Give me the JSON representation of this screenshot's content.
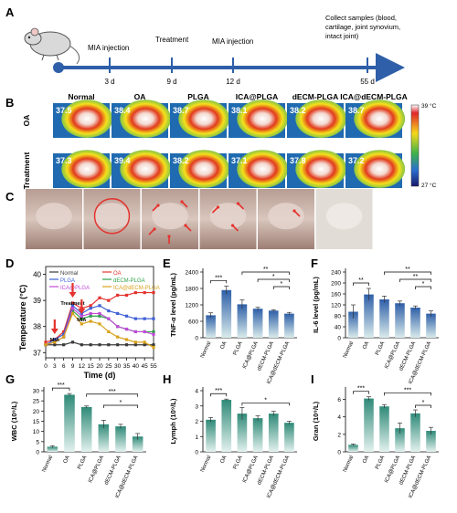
{
  "panels": {
    "A": {
      "label": "A",
      "timeline": [
        {
          "day": "3 d",
          "event": "MIA injection"
        },
        {
          "day": "9 d",
          "event": "Treatment"
        },
        {
          "day": "12 d",
          "event": "MIA injection"
        },
        {
          "day": "55 d",
          "event": "Collect samples (blood, cartilage, joint synovium, intact joint)"
        }
      ]
    },
    "B": {
      "label": "B",
      "columns": [
        "Normal",
        "OA",
        "PLGA",
        "ICA@PLGA",
        "dECM-PLGA",
        "ICA@dECM-PLGA"
      ],
      "rows": [
        "OA",
        "Treatment"
      ],
      "temps": [
        [
          "37.5",
          "38.4",
          "38.7",
          "38.1",
          "38.2",
          "38.7"
        ],
        [
          "37.3",
          "39.4",
          "38.2",
          "37.1",
          "37.8",
          "37.2"
        ]
      ],
      "scale_max": "39 °C",
      "scale_min": "27 °C"
    },
    "C": {
      "label": "C"
    },
    "D": {
      "label": "D",
      "legend": [
        "Normal",
        "OA",
        "PLGA",
        "dECM-PLGA",
        "ICA@PLGA",
        "ICA@dECM-PLGA"
      ],
      "arrow_labels": [
        "MIA",
        "Treatment",
        "MIA"
      ]
    },
    "E": {
      "label": "E"
    },
    "F": {
      "label": "F"
    },
    "G": {
      "label": "G"
    },
    "H": {
      "label": "H"
    },
    "I": {
      "label": "I"
    }
  },
  "colors": {
    "Normal": "#3a3a3a",
    "OA": "#e5322d",
    "PLGA": "#3e5fd6",
    "dECM-PLGA": "#2ea04a",
    "ICA@PLGA": "#c04ad8",
    "ICA@dECM-PLGA": "#d8a21a",
    "timeline": "#2e5fa8",
    "bar_top": "#2e5fa8",
    "bar_bottom": "#d9ebeb",
    "bar_top_green": "#2f8a78"
  },
  "chart_data": [
    {
      "panel": "D",
      "type": "line",
      "xlabel": "Time (d)",
      "ylabel": "Temperature (°C)",
      "xticks": [
        0,
        3,
        6,
        9,
        12,
        15,
        20,
        25,
        30,
        35,
        40,
        45,
        55
      ],
      "yticks": [
        37,
        38,
        39,
        40
      ],
      "ylim": [
        36.8,
        40.3
      ],
      "x": [
        0,
        3,
        6,
        9,
        12,
        15,
        20,
        25,
        30,
        35,
        40,
        45,
        55
      ],
      "series": [
        {
          "name": "Normal",
          "values": [
            37.3,
            37.3,
            37.3,
            37.4,
            37.3,
            37.3,
            37.3,
            37.3,
            37.3,
            37.3,
            37.3,
            37.3,
            37.3
          ]
        },
        {
          "name": "OA",
          "values": [
            37.4,
            37.5,
            37.8,
            38.9,
            38.7,
            38.8,
            39.1,
            39.0,
            39.2,
            39.2,
            39.3,
            39.3,
            39.3
          ]
        },
        {
          "name": "PLGA",
          "values": [
            37.3,
            37.5,
            37.7,
            38.8,
            38.5,
            38.7,
            38.8,
            38.6,
            38.5,
            38.4,
            38.3,
            38.3,
            38.3
          ]
        },
        {
          "name": "dECM-PLGA",
          "values": [
            37.3,
            37.4,
            37.6,
            38.6,
            38.3,
            38.4,
            38.4,
            38.3,
            38.0,
            37.9,
            37.8,
            37.8,
            37.8
          ]
        },
        {
          "name": "ICA@PLGA",
          "values": [
            37.3,
            37.4,
            37.6,
            38.7,
            38.4,
            38.5,
            38.5,
            38.3,
            38.0,
            37.9,
            37.8,
            37.8,
            37.7
          ]
        },
        {
          "name": "ICA@dECM-PLGA",
          "values": [
            37.3,
            37.4,
            37.6,
            38.5,
            38.1,
            38.2,
            38.1,
            37.8,
            37.6,
            37.5,
            37.4,
            37.4,
            37.2
          ]
        }
      ]
    },
    {
      "panel": "E",
      "type": "bar",
      "ylabel": "TNF-α level (pg/mL)",
      "categories": [
        "Normal",
        "OA",
        "PLGA",
        "ICA@PLGA",
        "dECM-PLGA",
        "ICA@dECM-PLGA"
      ],
      "values": [
        820,
        1740,
        1220,
        1060,
        990,
        880
      ],
      "errors": [
        90,
        150,
        160,
        50,
        30,
        45
      ],
      "ylim": [
        0,
        2400
      ],
      "yticks": [
        0,
        600,
        1200,
        1800,
        2400
      ],
      "sig": [
        {
          "a": 0,
          "b": 1,
          "label": "***",
          "level": 0
        },
        {
          "a": 2,
          "b": 5,
          "label": "**",
          "level": 2
        },
        {
          "a": 3,
          "b": 5,
          "label": "*",
          "level": 1
        },
        {
          "a": 4,
          "b": 5,
          "label": "*",
          "level": 0
        }
      ]
    },
    {
      "panel": "F",
      "type": "bar",
      "ylabel": "IL-6 level (pg/mL)",
      "categories": [
        "Normal",
        "OA",
        "PLGA",
        "ICA@PLGA",
        "dECM-PLGA",
        "ICA@dECM-PLGA"
      ],
      "values": [
        95,
        158,
        140,
        126,
        110,
        88
      ],
      "errors": [
        25,
        22,
        12,
        8,
        6,
        10
      ],
      "ylim": [
        0,
        240
      ],
      "yticks": [
        0,
        40,
        80,
        120,
        160,
        200,
        240
      ],
      "sig": [
        {
          "a": 0,
          "b": 1,
          "label": "**",
          "level": 0
        },
        {
          "a": 2,
          "b": 5,
          "label": "**",
          "level": 2
        },
        {
          "a": 3,
          "b": 5,
          "label": "**",
          "level": 1
        },
        {
          "a": 4,
          "b": 5,
          "label": "*",
          "level": 0
        }
      ]
    },
    {
      "panel": "G",
      "type": "bar",
      "ylabel": "WBC (10⁹/L)",
      "categories": [
        "Normal",
        "OA",
        "PLGA",
        "ICA@PLGA",
        "dECM-PLGA",
        "ICA@dECM-PLGA"
      ],
      "values": [
        2.5,
        28.0,
        22.0,
        13.5,
        12.5,
        7.5
      ],
      "errors": [
        0.5,
        0.6,
        0.5,
        2.0,
        1.0,
        1.5
      ],
      "ylim": [
        0,
        30
      ],
      "yticks": [
        0,
        5,
        10,
        15,
        20,
        25,
        30
      ],
      "sig": [
        {
          "a": 0,
          "b": 1,
          "label": "***",
          "level": 0
        },
        {
          "a": 2,
          "b": 5,
          "label": "***",
          "level": 1
        },
        {
          "a": 3,
          "b": 5,
          "label": "*",
          "level": 0
        }
      ]
    },
    {
      "panel": "H",
      "type": "bar",
      "ylabel": "Lymph (10⁹/L)",
      "categories": [
        "Normal",
        "OA",
        "PLGA",
        "ICA@PLGA",
        "dECM-PLGA",
        "ICA@dECM-PLGA"
      ],
      "values": [
        2.1,
        3.4,
        2.5,
        2.2,
        2.5,
        1.9
      ],
      "errors": [
        0.15,
        0.05,
        0.4,
        0.15,
        0.15,
        0.1
      ],
      "ylim": [
        0,
        4
      ],
      "yticks": [
        0,
        1,
        2,
        3,
        4
      ],
      "sig": [
        {
          "a": 0,
          "b": 1,
          "label": "***",
          "level": 0
        },
        {
          "a": 2,
          "b": 5,
          "label": "*",
          "level": 0
        }
      ]
    },
    {
      "panel": "I",
      "type": "bar",
      "ylabel": "Gran (10⁹/L)",
      "categories": [
        "Normal",
        "OA",
        "PLGA",
        "ICA@PLGA",
        "dECM-PLGA",
        "ICA@dECM-PLGA"
      ],
      "values": [
        0.8,
        6.1,
        5.2,
        2.7,
        4.4,
        2.4
      ],
      "errors": [
        0.1,
        0.2,
        0.2,
        0.6,
        0.4,
        0.4
      ],
      "ylim": [
        0,
        7
      ],
      "yticks": [
        0,
        2,
        4,
        6
      ],
      "sig": [
        {
          "a": 0,
          "b": 1,
          "label": "***",
          "level": 0
        },
        {
          "a": 2,
          "b": 5,
          "label": "***",
          "level": 1
        },
        {
          "a": 4,
          "b": 5,
          "label": "*",
          "level": 0
        }
      ]
    }
  ]
}
